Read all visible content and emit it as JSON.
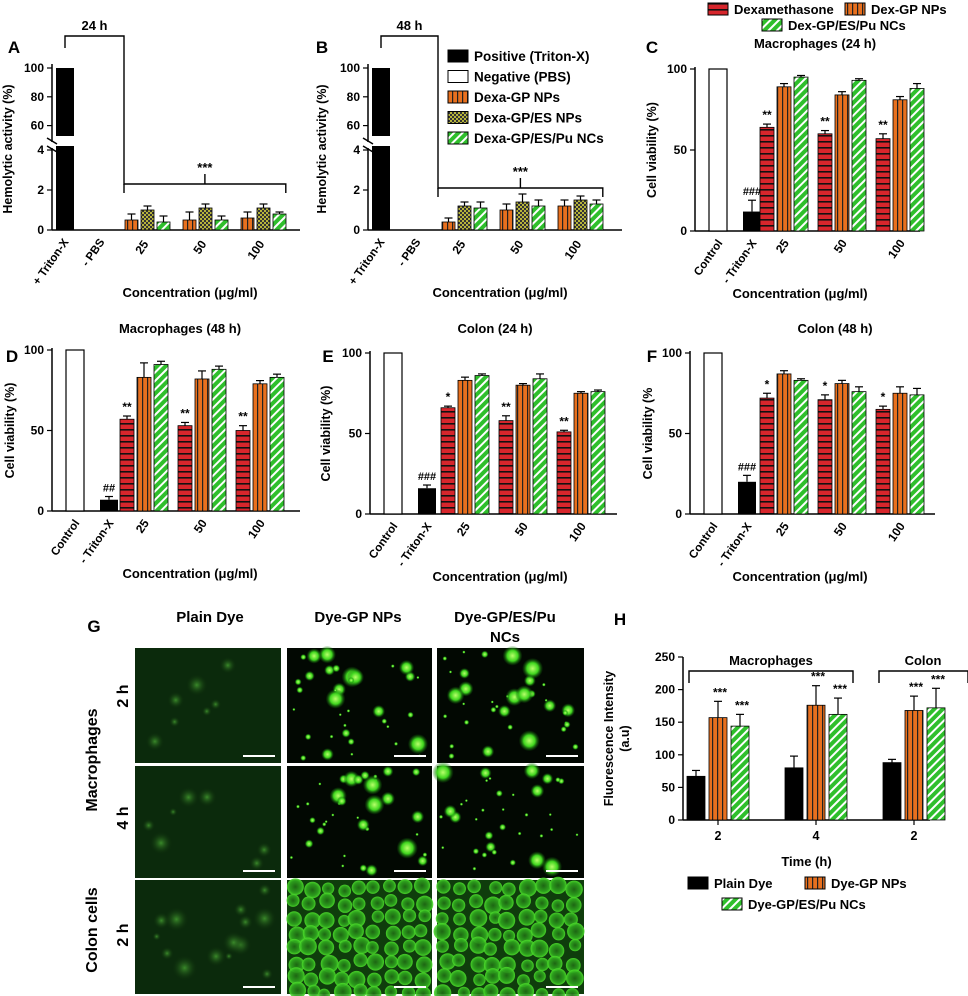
{
  "colors": {
    "black": "#000000",
    "white": "#ffffff",
    "red": "#d7262c",
    "orange": "#e8701e",
    "olive": "#9a9a2a",
    "green": "#2fbf2c"
  },
  "chart_data": [
    {
      "panel": "A",
      "type": "bar",
      "title": "24 h",
      "xlabel": "Concentration (μg/ml)",
      "ylabel": "Hemolytic activity (%)",
      "ylim_lower": [
        0,
        4
      ],
      "ylim_upper": [
        50,
        100
      ],
      "yticks_lower": [
        "0",
        "2",
        "4"
      ],
      "yticks_upper": [
        "60",
        "80",
        "100"
      ],
      "controls": [
        {
          "label": "+ Triton-X",
          "value": 100
        },
        {
          "label": "- PBS",
          "value": 0
        }
      ],
      "categories": [
        "25",
        "50",
        "100"
      ],
      "series": [
        {
          "name": "Dexa-GP NPs",
          "values": [
            0.5,
            0.5,
            0.6
          ],
          "errors": [
            0.3,
            0.4,
            0.3
          ]
        },
        {
          "name": "Dexa-GP/ES NPs",
          "values": [
            1.0,
            1.1,
            1.1
          ],
          "errors": [
            0.2,
            0.2,
            0.2
          ]
        },
        {
          "name": "Dexa-GP/ES/Pu NCs",
          "values": [
            0.4,
            0.5,
            0.8
          ],
          "errors": [
            0.3,
            0.2,
            0.1
          ]
        }
      ],
      "significance": "***"
    },
    {
      "panel": "B",
      "type": "bar",
      "title": "48 h",
      "xlabel": "Concentration (μg/ml)",
      "ylabel": "Hemolytic activity (%)",
      "ylim_lower": [
        0,
        4
      ],
      "ylim_upper": [
        50,
        100
      ],
      "yticks_lower": [
        "0",
        "2",
        "4"
      ],
      "yticks_upper": [
        "60",
        "80",
        "100"
      ],
      "controls": [
        {
          "label": "+ Triton-X",
          "value": 100
        },
        {
          "label": "- PBS",
          "value": 0
        }
      ],
      "categories": [
        "25",
        "50",
        "100"
      ],
      "series": [
        {
          "name": "Dexa-GP NPs",
          "values": [
            0.4,
            1.0,
            1.2
          ],
          "errors": [
            0.2,
            0.3,
            0.3
          ]
        },
        {
          "name": "Dexa-GP/ES NPs",
          "values": [
            1.2,
            1.4,
            1.5
          ],
          "errors": [
            0.2,
            0.4,
            0.2
          ]
        },
        {
          "name": "Dexa-GP/ES/Pu NCs",
          "values": [
            1.1,
            1.2,
            1.3
          ],
          "errors": [
            0.3,
            0.3,
            0.2
          ]
        }
      ],
      "significance": "***",
      "legend": [
        {
          "name": "Positive (Triton-X)",
          "style": "black"
        },
        {
          "name": "Negative (PBS)",
          "style": "white"
        },
        {
          "name": "Dexa-GP NPs",
          "style": "orange"
        },
        {
          "name": "Dexa-GP/ES NPs",
          "style": "olive"
        },
        {
          "name": "Dexa-GP/ES/Pu NCs",
          "style": "green"
        }
      ]
    },
    {
      "panel": "C",
      "type": "bar",
      "title": "Macrophages (24 h)",
      "xlabel": "Concentration (μg/ml)",
      "ylabel": "Cell viability (%)",
      "ylim": [
        0,
        100
      ],
      "yticks": [
        "0",
        "50",
        "100"
      ],
      "controls": [
        {
          "label": "Control",
          "value": 100,
          "error": 0,
          "mark": ""
        },
        {
          "label": "- Triton-X",
          "value": 12,
          "error": 7,
          "mark": "###"
        }
      ],
      "categories": [
        "25",
        "50",
        "100"
      ],
      "series": [
        {
          "name": "Dexamethasone",
          "values": [
            64,
            60,
            57
          ],
          "errors": [
            2,
            2,
            3
          ],
          "marks": [
            "**",
            "**",
            "**"
          ]
        },
        {
          "name": "Dex-GP NPs",
          "values": [
            89,
            84,
            81
          ],
          "errors": [
            2,
            2,
            2
          ],
          "marks": [
            "",
            "",
            ""
          ]
        },
        {
          "name": "Dex-GP/ES/Pu NCs",
          "values": [
            95,
            93,
            88
          ],
          "errors": [
            1,
            1,
            3
          ],
          "marks": [
            "",
            "",
            ""
          ]
        }
      ],
      "legend": [
        {
          "name": "Dexamethasone",
          "style": "red"
        },
        {
          "name": "Dex-GP NPs",
          "style": "orange"
        },
        {
          "name": "Dex-GP/ES/Pu NCs",
          "style": "green"
        }
      ]
    },
    {
      "panel": "D",
      "type": "bar",
      "title": "Macrophages (48 h)",
      "xlabel": "Concentration (μg/ml)",
      "ylabel": "Cell viability (%)",
      "ylim": [
        0,
        100
      ],
      "yticks": [
        "0",
        "50",
        "100"
      ],
      "controls": [
        {
          "label": "Control",
          "value": 100,
          "error": 0,
          "mark": ""
        },
        {
          "label": "- Triton-X",
          "value": 7,
          "error": 2,
          "mark": "##"
        }
      ],
      "categories": [
        "25",
        "50",
        "100"
      ],
      "series": [
        {
          "name": "Dexamethasone",
          "values": [
            57,
            53,
            50
          ],
          "errors": [
            2,
            2,
            3
          ],
          "marks": [
            "**",
            "**",
            "**"
          ]
        },
        {
          "name": "Dex-GP NPs",
          "values": [
            83,
            82,
            79
          ],
          "errors": [
            9,
            5,
            2
          ],
          "marks": [
            "",
            "",
            ""
          ]
        },
        {
          "name": "Dex-GP/ES/Pu NCs",
          "values": [
            91,
            88,
            83
          ],
          "errors": [
            2,
            2,
            2
          ],
          "marks": [
            "",
            "",
            ""
          ]
        }
      ]
    },
    {
      "panel": "E",
      "type": "bar",
      "title": "Colon (24 h)",
      "xlabel": "Concentration (μg/ml)",
      "ylabel": "Cell viability (%)",
      "ylim": [
        0,
        100
      ],
      "yticks": [
        "0",
        "50",
        "100"
      ],
      "controls": [
        {
          "label": "Control",
          "value": 100,
          "error": 0,
          "mark": ""
        },
        {
          "label": "- Triton-X",
          "value": 16,
          "error": 2,
          "mark": "###"
        }
      ],
      "categories": [
        "25",
        "50",
        "100"
      ],
      "series": [
        {
          "name": "Dexamethasone",
          "values": [
            66,
            58,
            51
          ],
          "errors": [
            1,
            3,
            1
          ],
          "marks": [
            "*",
            "**",
            "**"
          ]
        },
        {
          "name": "Dex-GP NPs",
          "values": [
            83,
            80,
            75
          ],
          "errors": [
            2,
            1,
            1
          ],
          "marks": [
            "",
            "",
            ""
          ]
        },
        {
          "name": "Dex-GP/ES/Pu NCs",
          "values": [
            86,
            84,
            76
          ],
          "errors": [
            1,
            3,
            1
          ],
          "marks": [
            "",
            "",
            ""
          ]
        }
      ]
    },
    {
      "panel": "F",
      "type": "bar",
      "title": "Colon (48 h)",
      "xlabel": "Concentration (μg/ml)",
      "ylabel": "Cell viability (%",
      "ylim": [
        0,
        100
      ],
      "yticks": [
        "0",
        "50",
        "100"
      ],
      "controls": [
        {
          "label": "Control",
          "value": 100,
          "error": 0,
          "mark": ""
        },
        {
          "label": "- Triton-X",
          "value": 20,
          "error": 4,
          "mark": "###"
        }
      ],
      "categories": [
        "25",
        "50",
        "100"
      ],
      "series": [
        {
          "name": "Dexamethasone",
          "values": [
            72,
            71,
            65
          ],
          "errors": [
            3,
            3,
            2
          ],
          "marks": [
            "*",
            "*",
            "*"
          ]
        },
        {
          "name": "Dex-GP NPs",
          "values": [
            87,
            81,
            75
          ],
          "errors": [
            2,
            2,
            4
          ],
          "marks": [
            "",
            "",
            ""
          ]
        },
        {
          "name": "Dex-GP/ES/Pu NCs",
          "values": [
            83,
            76,
            74
          ],
          "errors": [
            1,
            3,
            4
          ],
          "marks": [
            "",
            "",
            ""
          ]
        }
      ]
    },
    {
      "panel": "H",
      "type": "bar",
      "xlabel": "Time (h)",
      "ylabel": "Fluorescence Intensity (a.u)",
      "ylim": [
        0,
        250
      ],
      "yticks": [
        "0",
        "50",
        "100",
        "150",
        "200",
        "250"
      ],
      "categories": [
        "2",
        "4",
        "2"
      ],
      "groups": [
        {
          "label": "Macrophages",
          "span": [
            0,
            1
          ]
        },
        {
          "label": "Colon",
          "span": [
            2,
            2
          ]
        }
      ],
      "series": [
        {
          "name": "Plain Dye",
          "values": [
            67,
            80,
            88
          ],
          "errors": [
            9,
            18,
            5
          ],
          "marks": [
            "",
            "",
            ""
          ]
        },
        {
          "name": "Dye-GP NPs",
          "values": [
            157,
            176,
            168
          ],
          "errors": [
            25,
            30,
            22
          ],
          "marks": [
            "***",
            "***",
            "***"
          ]
        },
        {
          "name": "Dye-GP/ES/Pu NCs",
          "values": [
            144,
            162,
            172
          ],
          "errors": [
            18,
            25,
            30
          ],
          "marks": [
            "***",
            "***",
            "***"
          ]
        }
      ],
      "legend": [
        {
          "name": "Plain Dye",
          "style": "black"
        },
        {
          "name": "Dye-GP NPs",
          "style": "orange"
        },
        {
          "name": "Dye-GP/ES/Pu NCs",
          "style": "green"
        }
      ]
    }
  ],
  "panel_g": {
    "letter": "G",
    "columns": [
      "Plain Dye",
      "Dye-GP NPs",
      "Dye-GP/ES/Pu",
      "NCs"
    ],
    "row_groups": [
      "Macrophages",
      "Colon cells"
    ],
    "row_times": [
      "2 h",
      "4 h",
      "2 h"
    ],
    "image_descriptions": [
      "dim",
      "bright",
      "bright"
    ]
  }
}
